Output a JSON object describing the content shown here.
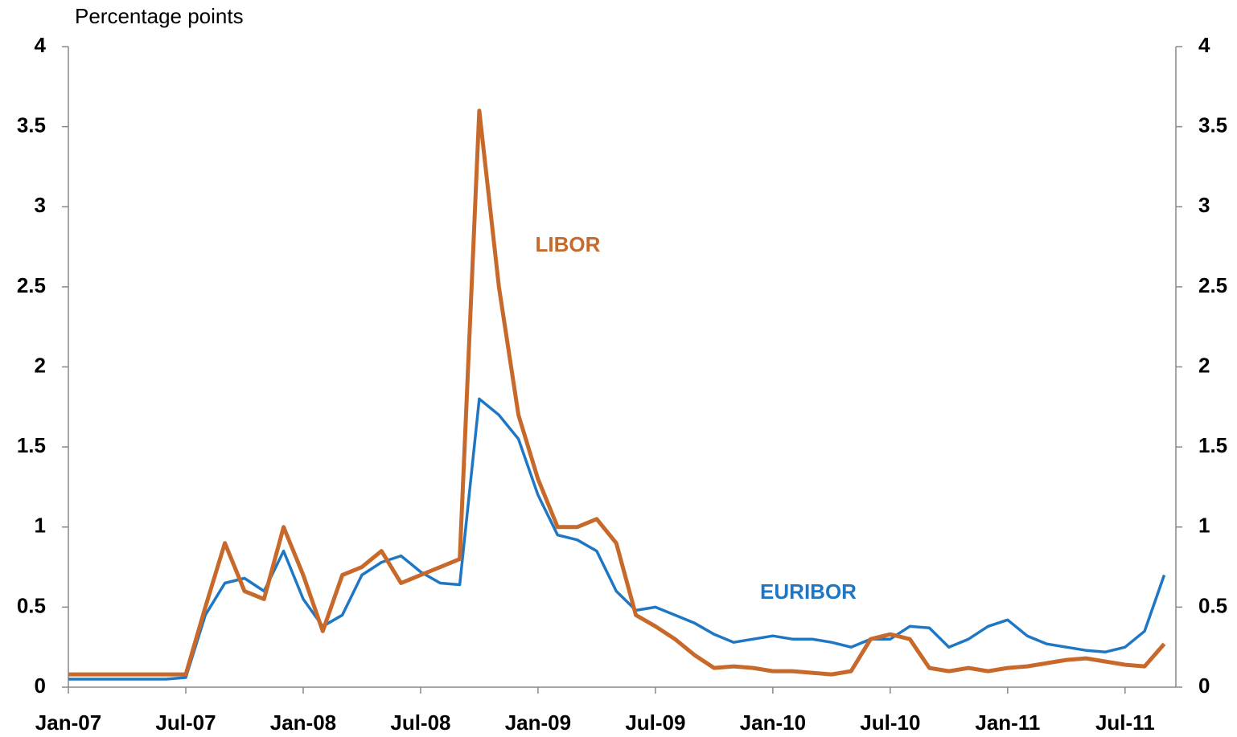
{
  "chart_data": {
    "type": "line",
    "y_axis_label": "Percentage points",
    "x": [
      "Jan-07",
      "Feb-07",
      "Mar-07",
      "Apr-07",
      "May-07",
      "Jun-07",
      "Jul-07",
      "Aug-07",
      "Sep-07",
      "Oct-07",
      "Nov-07",
      "Dec-07",
      "Jan-08",
      "Feb-08",
      "Mar-08",
      "Apr-08",
      "May-08",
      "Jun-08",
      "Jul-08",
      "Aug-08",
      "Sep-08",
      "Oct-08",
      "Nov-08",
      "Dec-08",
      "Jan-09",
      "Feb-09",
      "Mar-09",
      "Apr-09",
      "May-09",
      "Jun-09",
      "Jul-09",
      "Aug-09",
      "Sep-09",
      "Oct-09",
      "Nov-09",
      "Dec-09",
      "Jan-10",
      "Feb-10",
      "Mar-10",
      "Apr-10",
      "May-10",
      "Jun-10",
      "Jul-10",
      "Aug-10",
      "Sep-10",
      "Oct-10",
      "Nov-10",
      "Dec-10",
      "Jan-11",
      "Feb-11",
      "Mar-11",
      "Apr-11",
      "May-11",
      "Jun-11",
      "Jul-11",
      "Aug-11",
      "Sep-11"
    ],
    "xticks": [
      "Jan-07",
      "Jul-07",
      "Jan-08",
      "Jul-08",
      "Jan-09",
      "Jul-09",
      "Jan-10",
      "Jul-10",
      "Jan-11",
      "Jul-11"
    ],
    "series": [
      {
        "name": "EURIBOR",
        "color": "#1f77c4",
        "values": [
          0.05,
          0.05,
          0.05,
          0.05,
          0.05,
          0.05,
          0.06,
          0.45,
          0.65,
          0.68,
          0.6,
          0.85,
          0.55,
          0.38,
          0.45,
          0.7,
          0.78,
          0.82,
          0.72,
          0.65,
          0.64,
          1.8,
          1.7,
          1.55,
          1.2,
          0.95,
          0.92,
          0.85,
          0.6,
          0.48,
          0.5,
          0.45,
          0.4,
          0.33,
          0.28,
          0.3,
          0.32,
          0.3,
          0.3,
          0.28,
          0.25,
          0.3,
          0.3,
          0.38,
          0.37,
          0.25,
          0.3,
          0.38,
          0.42,
          0.32,
          0.27,
          0.25,
          0.23,
          0.22,
          0.25,
          0.35,
          0.7
        ]
      },
      {
        "name": "LIBOR",
        "color": "#c8692c",
        "values": [
          0.08,
          0.08,
          0.08,
          0.08,
          0.08,
          0.08,
          0.08,
          0.5,
          0.9,
          0.6,
          0.55,
          1.0,
          0.7,
          0.35,
          0.7,
          0.75,
          0.85,
          0.65,
          0.7,
          0.75,
          0.8,
          3.6,
          2.5,
          1.7,
          1.3,
          1.0,
          1.0,
          1.05,
          0.9,
          0.45,
          0.38,
          0.3,
          0.2,
          0.12,
          0.13,
          0.12,
          0.1,
          0.1,
          0.09,
          0.08,
          0.1,
          0.3,
          0.33,
          0.3,
          0.12,
          0.1,
          0.12,
          0.1,
          0.12,
          0.13,
          0.15,
          0.17,
          0.18,
          0.16,
          0.14,
          0.13,
          0.27
        ]
      }
    ],
    "ylim": [
      0,
      4
    ],
    "yticks": [
      0,
      0.5,
      1,
      1.5,
      2,
      2.5,
      3,
      3.5,
      4
    ],
    "y2lim": [
      0,
      4
    ],
    "y2ticks": [
      0,
      0.5,
      1,
      1.5,
      2,
      2.5,
      3,
      3.5,
      4
    ],
    "grid": false
  }
}
